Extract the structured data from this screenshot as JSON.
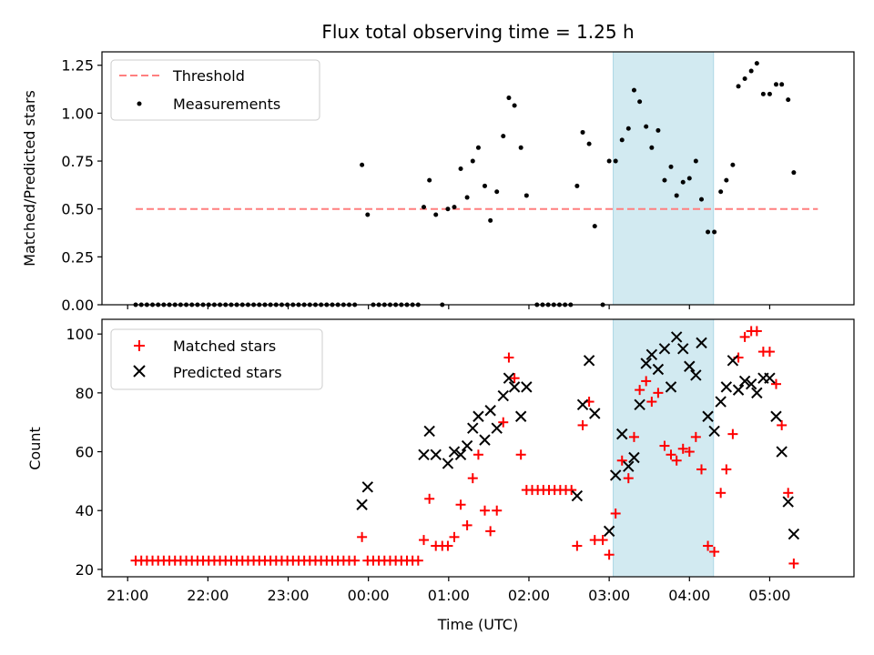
{
  "chart_data": {
    "type": "scatter",
    "title": "Flux total observing time = 1.25 h",
    "xlabel": "Time (UTC)",
    "x_unit": "hours since 21:00 UTC",
    "x_ticks": [
      {
        "x": 0,
        "label": "21:00"
      },
      {
        "x": 1,
        "label": "22:00"
      },
      {
        "x": 2,
        "label": "23:00"
      },
      {
        "x": 3,
        "label": "00:00"
      },
      {
        "x": 4,
        "label": "01:00"
      },
      {
        "x": 5,
        "label": "02:00"
      },
      {
        "x": 6,
        "label": "03:00"
      },
      {
        "x": 7,
        "label": "04:00"
      },
      {
        "x": 8,
        "label": "05:00"
      }
    ],
    "xlim": [
      -0.32,
      9.05
    ],
    "highlight_span": {
      "x0": 6.05,
      "x1": 7.3,
      "color": "#add8e6"
    },
    "top": {
      "ylabel": "Matched/Predicted stars",
      "ylim": [
        0,
        1.32
      ],
      "yticks": [
        0,
        0.25,
        0.5,
        0.75,
        1.0,
        1.25
      ],
      "ytick_labels": [
        "0.00",
        "0.25",
        "0.50",
        "0.75",
        "1.00",
        "1.25"
      ],
      "threshold": {
        "name": "Threshold",
        "value": 0.5,
        "x_range": [
          0.1,
          8.6
        ],
        "color": "#ff7f7f"
      },
      "measurements": {
        "name": "Measurements",
        "color": "#000000",
        "points": [
          [
            0.1,
            0
          ],
          [
            0.17,
            0
          ],
          [
            0.24,
            0
          ],
          [
            0.31,
            0
          ],
          [
            0.38,
            0
          ],
          [
            0.45,
            0
          ],
          [
            0.52,
            0
          ],
          [
            0.59,
            0
          ],
          [
            0.66,
            0
          ],
          [
            0.73,
            0
          ],
          [
            0.8,
            0
          ],
          [
            0.87,
            0
          ],
          [
            0.94,
            0
          ],
          [
            1.01,
            0
          ],
          [
            1.08,
            0
          ],
          [
            1.15,
            0
          ],
          [
            1.22,
            0
          ],
          [
            1.29,
            0
          ],
          [
            1.36,
            0
          ],
          [
            1.43,
            0
          ],
          [
            1.5,
            0
          ],
          [
            1.57,
            0
          ],
          [
            1.64,
            0
          ],
          [
            1.71,
            0
          ],
          [
            1.78,
            0
          ],
          [
            1.85,
            0
          ],
          [
            1.92,
            0
          ],
          [
            1.99,
            0
          ],
          [
            2.06,
            0
          ],
          [
            2.13,
            0
          ],
          [
            2.2,
            0
          ],
          [
            2.27,
            0
          ],
          [
            2.34,
            0
          ],
          [
            2.41,
            0
          ],
          [
            2.48,
            0
          ],
          [
            2.55,
            0
          ],
          [
            2.62,
            0
          ],
          [
            2.69,
            0
          ],
          [
            2.76,
            0
          ],
          [
            2.83,
            0
          ],
          [
            2.92,
            0.73
          ],
          [
            2.99,
            0.47
          ],
          [
            3.06,
            0
          ],
          [
            3.13,
            0
          ],
          [
            3.2,
            0
          ],
          [
            3.27,
            0
          ],
          [
            3.34,
            0
          ],
          [
            3.41,
            0
          ],
          [
            3.48,
            0
          ],
          [
            3.55,
            0
          ],
          [
            3.62,
            0
          ],
          [
            3.69,
            0.51
          ],
          [
            3.76,
            0.65
          ],
          [
            3.84,
            0.47
          ],
          [
            3.92,
            0
          ],
          [
            3.99,
            0.5
          ],
          [
            4.07,
            0.51
          ],
          [
            4.15,
            0.71
          ],
          [
            4.23,
            0.56
          ],
          [
            4.3,
            0.75
          ],
          [
            4.37,
            0.82
          ],
          [
            4.45,
            0.62
          ],
          [
            4.52,
            0.44
          ],
          [
            4.6,
            0.59
          ],
          [
            4.68,
            0.88
          ],
          [
            4.75,
            1.08
          ],
          [
            4.82,
            1.04
          ],
          [
            4.9,
            0.82
          ],
          [
            4.97,
            0.57
          ],
          [
            5.1,
            0
          ],
          [
            5.17,
            0
          ],
          [
            5.24,
            0
          ],
          [
            5.31,
            0
          ],
          [
            5.38,
            0
          ],
          [
            5.45,
            0
          ],
          [
            5.52,
            0
          ],
          [
            5.6,
            0.62
          ],
          [
            5.67,
            0.9
          ],
          [
            5.75,
            0.84
          ],
          [
            5.82,
            0.41
          ],
          [
            5.92,
            0
          ],
          [
            6.0,
            0.75
          ],
          [
            6.08,
            0.75
          ],
          [
            6.16,
            0.86
          ],
          [
            6.24,
            0.92
          ],
          [
            6.31,
            1.12
          ],
          [
            6.38,
            1.06
          ],
          [
            6.46,
            0.93
          ],
          [
            6.53,
            0.82
          ],
          [
            6.61,
            0.91
          ],
          [
            6.69,
            0.65
          ],
          [
            6.77,
            0.72
          ],
          [
            6.84,
            0.57
          ],
          [
            6.92,
            0.64
          ],
          [
            7.0,
            0.66
          ],
          [
            7.08,
            0.75
          ],
          [
            7.15,
            0.55
          ],
          [
            7.23,
            0.38
          ],
          [
            7.31,
            0.38
          ],
          [
            7.39,
            0.59
          ],
          [
            7.46,
            0.65
          ],
          [
            7.54,
            0.73
          ],
          [
            7.61,
            1.14
          ],
          [
            7.69,
            1.18
          ],
          [
            7.77,
            1.22
          ],
          [
            7.84,
            1.26
          ],
          [
            7.92,
            1.1
          ],
          [
            8.0,
            1.1
          ],
          [
            8.08,
            1.15
          ],
          [
            8.15,
            1.15
          ],
          [
            8.23,
            1.07
          ],
          [
            8.3,
            0.69
          ]
        ]
      }
    },
    "bottom": {
      "ylabel": "Count",
      "ylim": [
        17.5,
        105
      ],
      "yticks": [
        20,
        40,
        60,
        80,
        100
      ],
      "ytick_labels": [
        "20",
        "40",
        "60",
        "80",
        "100"
      ],
      "series": [
        {
          "name": "Matched stars",
          "marker": "plus",
          "color": "#ff0000",
          "points": [
            [
              0.1,
              23
            ],
            [
              0.17,
              23
            ],
            [
              0.24,
              23
            ],
            [
              0.31,
              23
            ],
            [
              0.38,
              23
            ],
            [
              0.45,
              23
            ],
            [
              0.52,
              23
            ],
            [
              0.59,
              23
            ],
            [
              0.66,
              23
            ],
            [
              0.73,
              23
            ],
            [
              0.8,
              23
            ],
            [
              0.87,
              23
            ],
            [
              0.94,
              23
            ],
            [
              1.01,
              23
            ],
            [
              1.08,
              23
            ],
            [
              1.15,
              23
            ],
            [
              1.22,
              23
            ],
            [
              1.29,
              23
            ],
            [
              1.36,
              23
            ],
            [
              1.43,
              23
            ],
            [
              1.5,
              23
            ],
            [
              1.57,
              23
            ],
            [
              1.64,
              23
            ],
            [
              1.71,
              23
            ],
            [
              1.78,
              23
            ],
            [
              1.85,
              23
            ],
            [
              1.92,
              23
            ],
            [
              1.99,
              23
            ],
            [
              2.06,
              23
            ],
            [
              2.13,
              23
            ],
            [
              2.2,
              23
            ],
            [
              2.27,
              23
            ],
            [
              2.34,
              23
            ],
            [
              2.41,
              23
            ],
            [
              2.48,
              23
            ],
            [
              2.55,
              23
            ],
            [
              2.62,
              23
            ],
            [
              2.69,
              23
            ],
            [
              2.76,
              23
            ],
            [
              2.83,
              23
            ],
            [
              2.92,
              31
            ],
            [
              2.99,
              23
            ],
            [
              3.06,
              23
            ],
            [
              3.13,
              23
            ],
            [
              3.2,
              23
            ],
            [
              3.27,
              23
            ],
            [
              3.34,
              23
            ],
            [
              3.41,
              23
            ],
            [
              3.48,
              23
            ],
            [
              3.55,
              23
            ],
            [
              3.62,
              23
            ],
            [
              3.69,
              30
            ],
            [
              3.76,
              44
            ],
            [
              3.84,
              28
            ],
            [
              3.92,
              28
            ],
            [
              3.99,
              28
            ],
            [
              4.07,
              31
            ],
            [
              4.15,
              42
            ],
            [
              4.23,
              35
            ],
            [
              4.3,
              51
            ],
            [
              4.37,
              59
            ],
            [
              4.45,
              40
            ],
            [
              4.52,
              33
            ],
            [
              4.6,
              40
            ],
            [
              4.68,
              70
            ],
            [
              4.75,
              92
            ],
            [
              4.82,
              85
            ],
            [
              4.9,
              59
            ],
            [
              4.97,
              47
            ],
            [
              5.04,
              47
            ],
            [
              5.11,
              47
            ],
            [
              5.18,
              47
            ],
            [
              5.25,
              47
            ],
            [
              5.32,
              47
            ],
            [
              5.39,
              47
            ],
            [
              5.46,
              47
            ],
            [
              5.53,
              47
            ],
            [
              5.6,
              28
            ],
            [
              5.67,
              69
            ],
            [
              5.75,
              77
            ],
            [
              5.82,
              30
            ],
            [
              5.92,
              30
            ],
            [
              6.0,
              25
            ],
            [
              6.08,
              39
            ],
            [
              6.16,
              57
            ],
            [
              6.24,
              51
            ],
            [
              6.31,
              65
            ],
            [
              6.38,
              81
            ],
            [
              6.46,
              84
            ],
            [
              6.53,
              77
            ],
            [
              6.61,
              80
            ],
            [
              6.69,
              62
            ],
            [
              6.77,
              59
            ],
            [
              6.84,
              57
            ],
            [
              6.92,
              61
            ],
            [
              7.0,
              60
            ],
            [
              7.08,
              65
            ],
            [
              7.15,
              54
            ],
            [
              7.23,
              28
            ],
            [
              7.31,
              26
            ],
            [
              7.39,
              46
            ],
            [
              7.46,
              54
            ],
            [
              7.54,
              66
            ],
            [
              7.61,
              92
            ],
            [
              7.69,
              99
            ],
            [
              7.77,
              101
            ],
            [
              7.84,
              101
            ],
            [
              7.92,
              94
            ],
            [
              8.0,
              94
            ],
            [
              8.08,
              83
            ],
            [
              8.15,
              69
            ],
            [
              8.23,
              46
            ],
            [
              8.3,
              22
            ]
          ]
        },
        {
          "name": "Predicted stars",
          "marker": "x",
          "color": "#000000",
          "points": [
            [
              2.92,
              42
            ],
            [
              2.99,
              48
            ],
            [
              3.69,
              59
            ],
            [
              3.76,
              67
            ],
            [
              3.84,
              59
            ],
            [
              3.99,
              56
            ],
            [
              4.07,
              60
            ],
            [
              4.15,
              59
            ],
            [
              4.23,
              62
            ],
            [
              4.3,
              68
            ],
            [
              4.37,
              72
            ],
            [
              4.45,
              64
            ],
            [
              4.52,
              74
            ],
            [
              4.6,
              68
            ],
            [
              4.68,
              79
            ],
            [
              4.75,
              85
            ],
            [
              4.82,
              82
            ],
            [
              4.9,
              72
            ],
            [
              4.97,
              82
            ],
            [
              5.6,
              45
            ],
            [
              5.67,
              76
            ],
            [
              5.75,
              91
            ],
            [
              5.82,
              73
            ],
            [
              6.0,
              33
            ],
            [
              6.08,
              52
            ],
            [
              6.16,
              66
            ],
            [
              6.24,
              55
            ],
            [
              6.31,
              58
            ],
            [
              6.38,
              76
            ],
            [
              6.46,
              90
            ],
            [
              6.53,
              93
            ],
            [
              6.61,
              88
            ],
            [
              6.69,
              95
            ],
            [
              6.77,
              82
            ],
            [
              6.84,
              99
            ],
            [
              6.92,
              95
            ],
            [
              7.0,
              89
            ],
            [
              7.08,
              86
            ],
            [
              7.15,
              97
            ],
            [
              7.23,
              72
            ],
            [
              7.31,
              67
            ],
            [
              7.39,
              77
            ],
            [
              7.46,
              82
            ],
            [
              7.54,
              91
            ],
            [
              7.61,
              81
            ],
            [
              7.69,
              84
            ],
            [
              7.77,
              83
            ],
            [
              7.84,
              80
            ],
            [
              7.92,
              85
            ],
            [
              8.0,
              85
            ],
            [
              8.08,
              72
            ],
            [
              8.15,
              60
            ],
            [
              8.23,
              43
            ],
            [
              8.3,
              32
            ]
          ]
        }
      ]
    }
  }
}
